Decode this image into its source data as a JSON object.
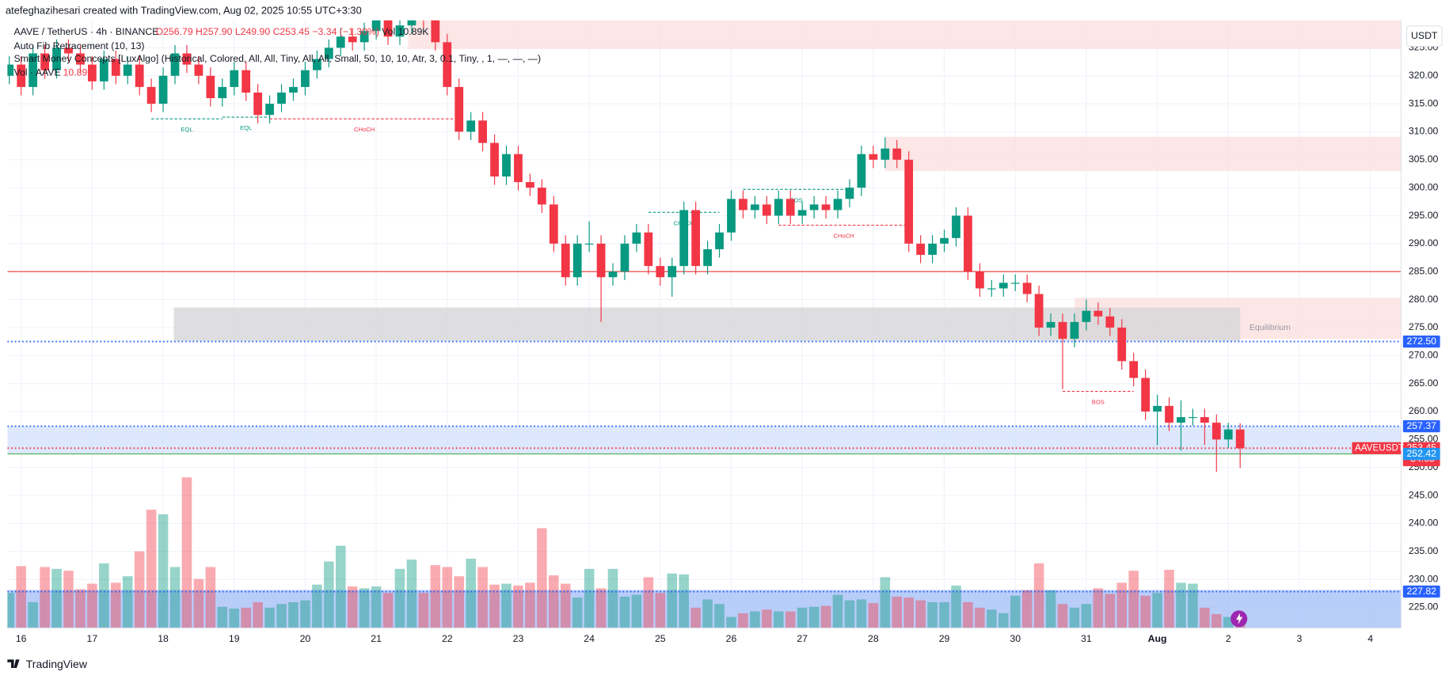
{
  "header": {
    "credit": "atefeghazihesari created with TradingView.com, Aug 02, 2025 10:55 UTC+3:30",
    "brand": "TradingView"
  },
  "legend": {
    "symbol": "AAVE / TetherUS · 4h · BINANCE",
    "ohlc": "O256.79 H257.90 L249.90 C253.45 −3.34 (−1.30%)",
    "vol": "Vol 10.89K",
    "fib": "Auto Fib Retracement (10, 13)",
    "smc": "Smart Money Concepts [LuxAlgo] (Historical, Colored, All, All, Tiny, All, All, Small, 50, 10, 10, Atr, 3, 0.1, Tiny, , 1, —, —, —)",
    "vol_name": "Vol · AAVE",
    "vol_value": "10.89K"
  },
  "chart_data": {
    "type": "candlestick",
    "currency": "USDT",
    "up_color": "#089981",
    "down_color": "#f23645",
    "xlim": [
      -0.16,
      117.6
    ],
    "ylim": [
      221.3,
      329.9
    ],
    "vlim": [
      0,
      460
    ],
    "xticks": [
      {
        "value": 1,
        "label": "16"
      },
      {
        "value": 7,
        "label": "17"
      },
      {
        "value": 13,
        "label": "18"
      },
      {
        "value": 19,
        "label": "19"
      },
      {
        "value": 25,
        "label": "20"
      },
      {
        "value": 31,
        "label": "21"
      },
      {
        "value": 37,
        "label": "22"
      },
      {
        "value": 43,
        "label": "23"
      },
      {
        "value": 49,
        "label": "24"
      },
      {
        "value": 55,
        "label": "25"
      },
      {
        "value": 61,
        "label": "26"
      },
      {
        "value": 67,
        "label": "27"
      },
      {
        "value": 73,
        "label": "28"
      },
      {
        "value": 79,
        "label": "29"
      },
      {
        "value": 85,
        "label": "30"
      },
      {
        "value": 91,
        "label": "31"
      },
      {
        "value": 97,
        "label": "Aug"
      },
      {
        "value": 103,
        "label": "2"
      },
      {
        "value": 109,
        "label": "3"
      },
      {
        "value": 115,
        "label": "4"
      }
    ],
    "yticks": [
      {
        "value": 225,
        "label": "225.00"
      },
      {
        "value": 230,
        "label": "230.00"
      },
      {
        "value": 235,
        "label": "235.00"
      },
      {
        "value": 240,
        "label": "240.00"
      },
      {
        "value": 245,
        "label": "245.00"
      },
      {
        "value": 250,
        "label": "250.00"
      },
      {
        "value": 255,
        "label": "255.00"
      },
      {
        "value": 260,
        "label": "260.00"
      },
      {
        "value": 265,
        "label": "265.00"
      },
      {
        "value": 270,
        "label": "270.00"
      },
      {
        "value": 275,
        "label": "275.00"
      },
      {
        "value": 280,
        "label": "280.00"
      },
      {
        "value": 285,
        "label": "285.00"
      },
      {
        "value": 290,
        "label": "290.00"
      },
      {
        "value": 295,
        "label": "295.00"
      },
      {
        "value": 300,
        "label": "300.00"
      },
      {
        "value": 305,
        "label": "305.00"
      },
      {
        "value": 310,
        "label": "310.00"
      },
      {
        "value": 315,
        "label": "315.00"
      },
      {
        "value": 320,
        "label": "320.00"
      },
      {
        "value": 325,
        "label": "325.00"
      }
    ],
    "grid": true,
    "open": [
      320,
      322,
      318,
      324,
      321,
      325,
      324,
      322,
      319,
      323,
      320,
      322,
      318,
      315,
      320,
      324,
      322,
      320,
      316,
      318,
      321,
      317,
      313,
      315,
      317,
      318,
      321,
      323,
      325,
      327,
      326,
      328,
      330,
      327,
      329,
      331,
      330,
      326,
      318,
      310,
      312,
      308,
      302,
      306,
      301,
      300,
      297,
      290,
      284,
      290,
      290,
      284,
      285,
      290,
      292,
      286,
      284,
      286,
      296,
      286,
      289,
      292,
      298,
      296,
      297,
      295,
      298,
      295,
      296,
      297,
      296,
      298,
      300,
      306,
      305,
      307,
      305,
      290,
      288,
      290,
      291,
      295,
      285,
      282,
      282,
      283,
      283,
      281,
      275,
      276,
      273,
      276,
      278,
      277,
      275,
      269,
      266,
      260,
      261,
      258,
      259,
      259,
      258,
      255,
      256.79
    ],
    "high": [
      323.5,
      323.5,
      325.5,
      325.5,
      326.5,
      326.5,
      325.5,
      323.5,
      324.5,
      324.5,
      323.5,
      323.5,
      319.5,
      321.5,
      325.5,
      325.5,
      323.5,
      321.5,
      319.5,
      322.5,
      322.5,
      318.5,
      316.5,
      318.5,
      319.5,
      322.5,
      324.5,
      326.5,
      328.5,
      328.5,
      329.5,
      331.5,
      331.5,
      330.5,
      332.5,
      332.5,
      331.5,
      327.5,
      319.5,
      313.5,
      313.5,
      309.5,
      307.5,
      307.5,
      302.5,
      301.5,
      298.5,
      291.5,
      291.5,
      294,
      291.5,
      286.5,
      291.5,
      293.5,
      293.5,
      287.5,
      287.5,
      297.5,
      297.5,
      290.5,
      293.5,
      299.5,
      299.5,
      298.5,
      298.5,
      299.5,
      299.5,
      297.5,
      298.5,
      298.5,
      299.5,
      301.5,
      307.5,
      307.5,
      309,
      308.5,
      306.5,
      291.5,
      291.5,
      292.5,
      296.5,
      296.5,
      286.5,
      283.5,
      284.5,
      284.5,
      284.5,
      282.5,
      277.5,
      277.5,
      277.5,
      280,
      279.5,
      278.5,
      276.5,
      270.5,
      267.5,
      263,
      262.5,
      262,
      260.5,
      260.5,
      259.5,
      258,
      257.9
    ],
    "low": [
      318.5,
      316.5,
      316.5,
      319.5,
      319.5,
      322.5,
      320.5,
      317.5,
      317.5,
      318.5,
      318.5,
      316.5,
      313.5,
      313.5,
      318.5,
      320.5,
      318.5,
      314.5,
      314.5,
      316.5,
      315.5,
      311.5,
      311.5,
      313.5,
      315.5,
      316.5,
      319.5,
      321.5,
      323.5,
      324.5,
      324.5,
      326.5,
      325.5,
      325.5,
      327.5,
      328.5,
      324.5,
      316.5,
      308.5,
      308.5,
      306.5,
      300.5,
      300.5,
      299.5,
      298.5,
      295.5,
      288.5,
      282.5,
      282.5,
      288.5,
      276,
      282.5,
      283.5,
      288.5,
      284.5,
      282.5,
      280.5,
      284.5,
      284.5,
      284.5,
      287.5,
      290.5,
      294.5,
      294.5,
      293.5,
      293.5,
      293.5,
      293.5,
      294.5,
      294.5,
      294.5,
      296.5,
      298.5,
      303.5,
      303.5,
      303.5,
      288.5,
      286.5,
      286.5,
      288.5,
      289.5,
      283.5,
      280.5,
      280.5,
      280.5,
      281.5,
      279.5,
      273.5,
      273.5,
      264,
      271.5,
      274.5,
      275.5,
      273.5,
      267.5,
      264.5,
      258.5,
      254,
      256.5,
      253,
      257.5,
      254,
      249.2,
      253.5,
      249.9
    ],
    "close": [
      322,
      318,
      324,
      321,
      325,
      324,
      322,
      319,
      323,
      320,
      322,
      318,
      315,
      320,
      324,
      322,
      320,
      316,
      318,
      321,
      317,
      313,
      315,
      317,
      318,
      321,
      323,
      325,
      327,
      326,
      328,
      330,
      327,
      329,
      331,
      330,
      326,
      318,
      310,
      312,
      308,
      302,
      306,
      301,
      300,
      297,
      290,
      284,
      290,
      290,
      284,
      285,
      290,
      292,
      286,
      284,
      286,
      296,
      286,
      289,
      292,
      298,
      296,
      297,
      295,
      298,
      295,
      296,
      297,
      296,
      298,
      300,
      306,
      305,
      307,
      305,
      290,
      288,
      290,
      291,
      295,
      285,
      282,
      282,
      283,
      283,
      281,
      275,
      276,
      273,
      276,
      278,
      277,
      275,
      269,
      266,
      260,
      261,
      258,
      259,
      259,
      258,
      255,
      256.79,
      253.45
    ],
    "volume": [
      26.6,
      46.9,
      19.6,
      46.2,
      44.8,
      43.4,
      29.4,
      33.6,
      49,
      34.3,
      39.2,
      58.1,
      89.6,
      86.1,
      46.2,
      114.1,
      37.1,
      46.2,
      16.1,
      14.7,
      15.4,
      19.6,
      15.4,
      18.2,
      19.6,
      21,
      32.9,
      50.4,
      62.3,
      31.5,
      30.1,
      31.5,
      26.6,
      44.8,
      51.8,
      26.6,
      47.6,
      46.2,
      39.2,
      52.5,
      46.2,
      32.9,
      33.6,
      32.2,
      34.3,
      75.6,
      39.9,
      33.6,
      23.1,
      44.8,
      30.1,
      44.8,
      23.8,
      25.2,
      38.5,
      26.6,
      41.3,
      40.6,
      15.4,
      21.7,
      18.2,
      8.4,
      11.2,
      12.6,
      14,
      12.6,
      12.6,
      15.4,
      16.1,
      16.8,
      25.2,
      21,
      21.7,
      18.9,
      38.5,
      23.8,
      23.1,
      21,
      19.6,
      19.6,
      32.2,
      19.6,
      15.4,
      14,
      11.2,
      24.5,
      28.7,
      49,
      28.7,
      18.2,
      15.4,
      18.2,
      30.1,
      25.9,
      34.3,
      43.4,
      24.5,
      26.6,
      44.1,
      34.3,
      33.6,
      15.4,
      10.5,
      8.4,
      10.89
    ],
    "zones": [
      {
        "from": 33.7,
        "to": 117.6,
        "top": 329.9,
        "bottom": 324.8,
        "color": "#fbe0e0"
      },
      {
        "from": 74,
        "to": 117.6,
        "top": 309.1,
        "bottom": 303.0,
        "color": "#fbe0e0"
      },
      {
        "from": 90,
        "to": 117.6,
        "top": 280.3,
        "bottom": 273.0,
        "color": "#fbe0e0"
      },
      {
        "from": 13.9,
        "to": 104,
        "top": 278.6,
        "bottom": 272.6,
        "color": "#d6d6d8",
        "label": "Equilibrium"
      },
      {
        "from": -0.16,
        "to": 117.6,
        "top": 257.37,
        "bottom": 252.42,
        "color": "#d4e2fd"
      },
      {
        "from": -0.16,
        "to": 117.6,
        "top": 228.1,
        "bottom": 221.3,
        "color": "#a7c1f8"
      }
    ],
    "structures": [
      {
        "label": "EQL",
        "from": 12,
        "to": 18,
        "price": 312.3,
        "color": "#089981"
      },
      {
        "label": "EQL",
        "from": 18,
        "to": 22,
        "price": 312.6,
        "color": "#089981"
      },
      {
        "label": "CHoCH",
        "from": 22,
        "to": 38,
        "price": 312.3,
        "color": "#f23645"
      },
      {
        "label": "CHoCH",
        "from": 54,
        "to": 60,
        "price": 295.6,
        "color": "#089981"
      },
      {
        "label": "BOS",
        "from": 62,
        "to": 71,
        "price": 299.7,
        "color": "#089981"
      },
      {
        "label": "CHoCH",
        "from": 65,
        "to": 76,
        "price": 293.3,
        "color": "#f23645"
      },
      {
        "label": "BOS",
        "from": 89,
        "to": 95,
        "price": 263.6,
        "color": "#f23645"
      }
    ],
    "levels": [
      {
        "value": 285,
        "color": "#e53935",
        "style": "solid"
      },
      {
        "value": 272.5,
        "label": "272.50",
        "color": "#2962ff",
        "style": "dotted"
      },
      {
        "value": 257.37,
        "label": "257.37",
        "color": "#2962ff",
        "style": "dotted"
      },
      {
        "value": 253.45,
        "label": "253.45",
        "tag": "AAVEUSDT",
        "countdown": "34:05",
        "color": "#f23645",
        "style": "dotted"
      },
      {
        "value": 252.42,
        "label": "252.42",
        "color": "#2196f3",
        "style": "solid",
        "line_color": "#4caf50"
      },
      {
        "value": 227.82,
        "label": "227.82",
        "color": "#2962ff",
        "style": "dotted"
      }
    ]
  }
}
